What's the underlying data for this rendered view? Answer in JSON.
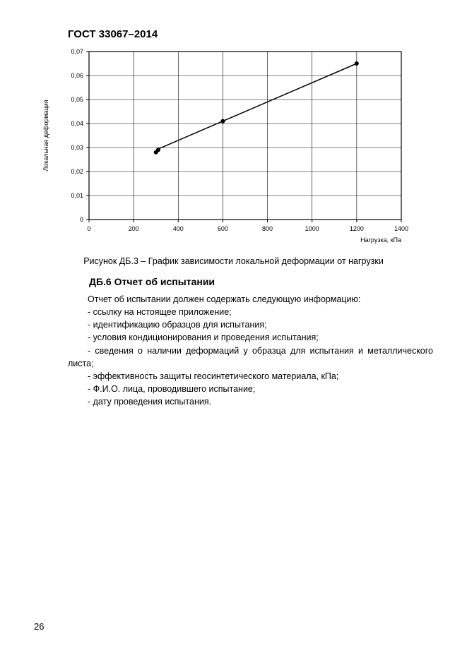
{
  "header": "ГОСТ 33067–2014",
  "chart": {
    "type": "line",
    "ylabel": "Локальная деформация",
    "xlabel": "Нагрузка, кПа",
    "xlim": [
      0,
      1400
    ],
    "ylim": [
      0,
      0.07
    ],
    "xtick_step": 200,
    "ytick_step": 0.01,
    "xticks": [
      0,
      200,
      400,
      600,
      800,
      1000,
      1200,
      1400
    ],
    "yticks": [
      0,
      0.01,
      0.02,
      0.03,
      0.04,
      0.05,
      0.06,
      0.07
    ],
    "ytick_labels": [
      "0",
      "0,01",
      "0,02",
      "0,03",
      "0,04",
      "0,05",
      "0,06",
      "0,07"
    ],
    "line_points": [
      {
        "x": 300,
        "y": 0.029
      },
      {
        "x": 1200,
        "y": 0.065
      }
    ],
    "markers": [
      {
        "x": 300,
        "y": 0.028
      },
      {
        "x": 310,
        "y": 0.029
      },
      {
        "x": 600,
        "y": 0.041
      },
      {
        "x": 1200,
        "y": 0.065
      }
    ],
    "line_color": "#000000",
    "marker_color": "#000000",
    "grid_color": "#000000",
    "background_color": "#ffffff",
    "axis_color": "#000000",
    "line_width": 1.5,
    "grid_width": 0.6,
    "marker_size": 3,
    "label_fontsize": 9,
    "tick_fontsize": 9
  },
  "caption": "Рисунок ДБ.3 – График зависимости локальной деформации от нагрузки",
  "section_title": "ДБ.6 Отчет об испытании",
  "body_lines": [
    "Отчет об испытании должен содержать следующую информацию:",
    "- ссылку на нстоящее приложение;",
    "- идентификацию образцов для испытания;",
    "- условия кондиционирования и проведения испытания;",
    "- сведения о наличии деформаций у образца для испытания и металлического листа;",
    "- эффективность защиты геосинтетического материала, кПа;",
    "- Ф.И.О. лица, проводившего испытание;",
    "- дату проведения испытания."
  ],
  "page_number": "26"
}
